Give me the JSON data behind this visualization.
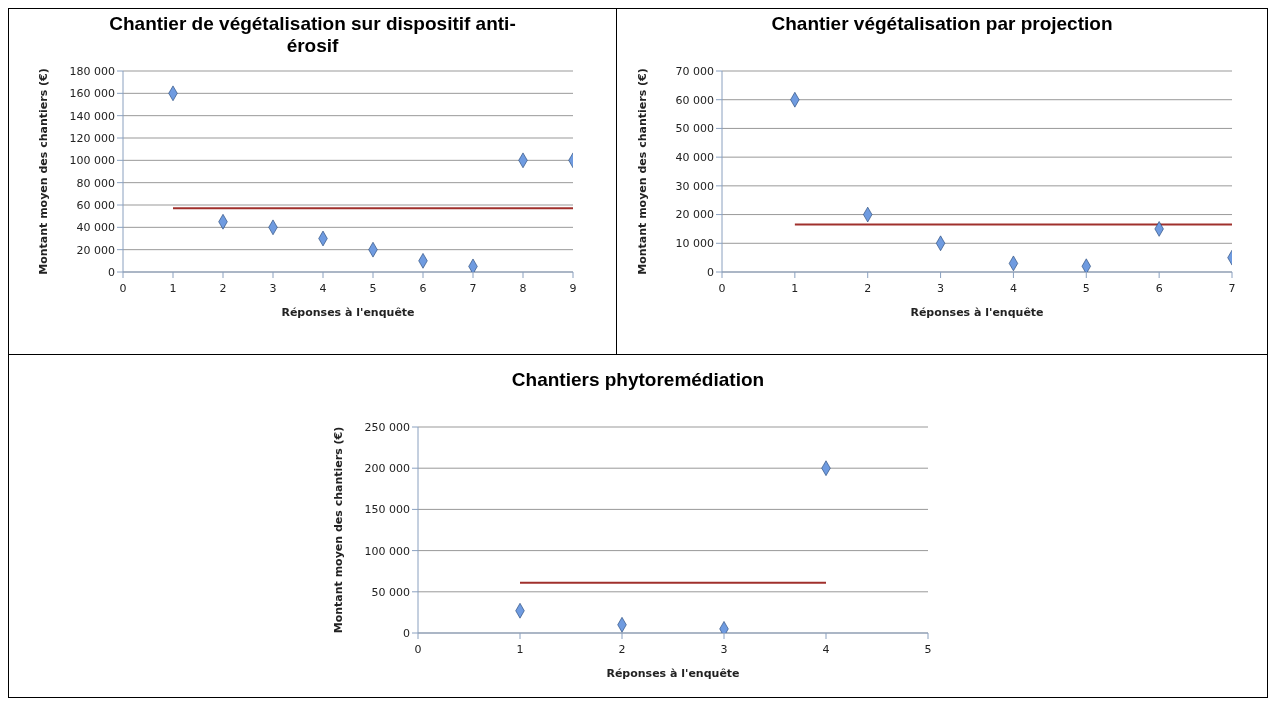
{
  "chart_data": [
    {
      "type": "scatter",
      "title": "Chantier de végétalisation sur dispositif anti-érosif",
      "xlabel": "Réponses à l'enquête",
      "ylabel": "Montant moyen des chantiers (€)",
      "grid": "y",
      "x": [
        1,
        2,
        3,
        4,
        5,
        6,
        7,
        8,
        9
      ],
      "series": [
        {
          "color": "#6f9be0",
          "marker": "diamond",
          "values": [
            160000,
            45000,
            40000,
            30000,
            20000,
            10000,
            5000,
            100000,
            100000
          ]
        },
        {
          "type": "line",
          "marker": "none",
          "color": "#a0302c",
          "x": [
            1,
            9
          ],
          "values": [
            57000,
            57000
          ]
        }
      ],
      "xlim": [
        0,
        9
      ],
      "xticks": [
        0,
        1,
        2,
        3,
        4,
        5,
        6,
        7,
        8,
        9
      ],
      "ylim": [
        0,
        180000
      ],
      "yticks": [
        {
          "value": 0,
          "label": "0"
        },
        {
          "value": 20000,
          "label": "20 000"
        },
        {
          "value": 40000,
          "label": "40 000"
        },
        {
          "value": 60000,
          "label": "60 000"
        },
        {
          "value": 80000,
          "label": "80 000"
        },
        {
          "value": 100000,
          "label": "100 000"
        },
        {
          "value": 120000,
          "label": "120 000"
        },
        {
          "value": 140000,
          "label": "140 000"
        },
        {
          "value": 160000,
          "label": "160 000"
        },
        {
          "value": 180000,
          "label": "180 000"
        }
      ]
    },
    {
      "type": "scatter",
      "title": "Chantier végétalisation par projection",
      "xlabel": "Réponses à l'enquête",
      "ylabel": "Montant moyen des chantiers (€)",
      "grid": "y",
      "x": [
        1,
        2,
        3,
        4,
        5,
        6,
        7
      ],
      "series": [
        {
          "color": "#6f9be0",
          "marker": "diamond",
          "values": [
            60000,
            20000,
            10000,
            3000,
            2000,
            15000,
            5000
          ]
        },
        {
          "type": "line",
          "marker": "none",
          "color": "#a0302c",
          "x": [
            1,
            7
          ],
          "values": [
            16500,
            16500
          ]
        }
      ],
      "xlim": [
        0,
        7
      ],
      "xticks": [
        0,
        1,
        2,
        3,
        4,
        5,
        6,
        7
      ],
      "ylim": [
        0,
        70000
      ],
      "yticks": [
        {
          "value": 0,
          "label": "0"
        },
        {
          "value": 10000,
          "label": "10 000"
        },
        {
          "value": 20000,
          "label": "20 000"
        },
        {
          "value": 30000,
          "label": "30 000"
        },
        {
          "value": 40000,
          "label": "40 000"
        },
        {
          "value": 50000,
          "label": "50 000"
        },
        {
          "value": 60000,
          "label": "60 000"
        },
        {
          "value": 70000,
          "label": "70 000"
        }
      ]
    },
    {
      "type": "scatter",
      "title": "Chantiers phytoremédiation",
      "xlabel": "Réponses à l'enquête",
      "ylabel": "Montant moyen des chantiers (€)",
      "grid": "y",
      "x": [
        1,
        2,
        3,
        4
      ],
      "series": [
        {
          "color": "#6f9be0",
          "marker": "diamond",
          "values": [
            27000,
            10000,
            5000,
            200000
          ]
        },
        {
          "type": "line",
          "marker": "none",
          "color": "#a0302c",
          "x": [
            1,
            4
          ],
          "values": [
            61000,
            61000
          ]
        }
      ],
      "xlim": [
        0,
        5
      ],
      "xticks": [
        0,
        1,
        2,
        3,
        4,
        5
      ],
      "ylim": [
        0,
        250000
      ],
      "yticks": [
        {
          "value": 0,
          "label": "0"
        },
        {
          "value": 50000,
          "label": "50 000"
        },
        {
          "value": 100000,
          "label": "100 000"
        },
        {
          "value": 150000,
          "label": "150 000"
        },
        {
          "value": 200000,
          "label": "200 000"
        },
        {
          "value": 250000,
          "label": "250 000"
        }
      ]
    }
  ]
}
